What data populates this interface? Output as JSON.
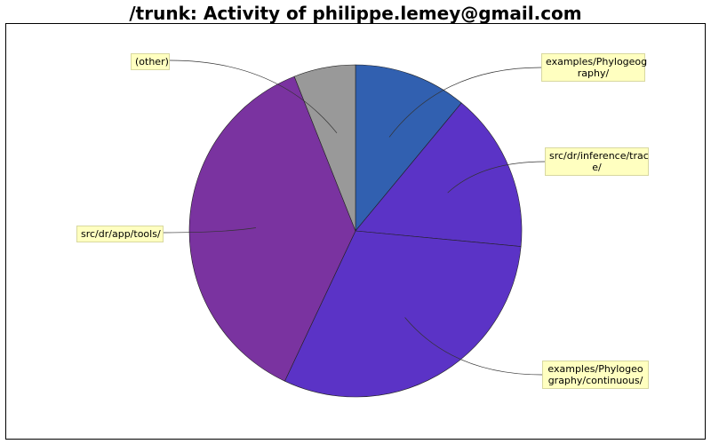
{
  "chart_data": {
    "type": "pie",
    "title": "/trunk: Activity of philippe.lemey@gmail.com",
    "slices": [
      {
        "label": "examples/Phylogeog\nraphy/",
        "value": 11.0,
        "color": "#3160b0"
      },
      {
        "label": "src/dr/inference/trac\ne/",
        "value": 15.5,
        "color": "#5b33c6"
      },
      {
        "label": "examples/Phylogeo\ngraphy/continuous/",
        "value": 30.5,
        "color": "#5b33c6"
      },
      {
        "label": "src/dr/app/tools/",
        "value": 37.0,
        "color": "#7a33a0"
      },
      {
        "label": "(other)",
        "value": 6.0,
        "color": "#999999"
      }
    ]
  }
}
